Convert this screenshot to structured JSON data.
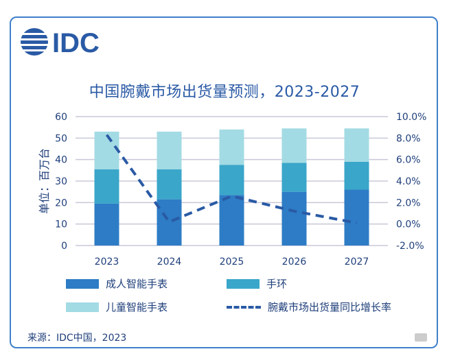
{
  "logo": {
    "text": "IDC",
    "icon": "idc-globe-logo"
  },
  "colors": {
    "adult": "#2d7cc5",
    "band": "#3aa6c9",
    "kids": "#a3dbe4",
    "yoy": "#2a5aa5",
    "axis_text": "#1e3e7a",
    "border": "#3f7fc9"
  },
  "chart_data": {
    "type": "bar",
    "title": "中国腕戴市场出货量预测，2023-2027",
    "ylabel": "单位：百万台",
    "categories": [
      "2023",
      "2024",
      "2025",
      "2026",
      "2027"
    ],
    "ylim": [
      0,
      60
    ],
    "yticks": [
      "0",
      "10",
      "20",
      "30",
      "40",
      "50",
      "60"
    ],
    "y2lim": [
      -2.0,
      10.0
    ],
    "y2ticks": [
      "-2.0%",
      "0.0%",
      "2.0%",
      "4.0%",
      "6.0%",
      "8.0%",
      "10.0%"
    ],
    "grid": true,
    "stacked": true,
    "series": [
      {
        "name": "成人智能手表",
        "type": "bar",
        "values": [
          19.5,
          21.5,
          23.5,
          25,
          26
        ]
      },
      {
        "name": "手环",
        "type": "bar",
        "values": [
          16,
          14,
          14,
          13.5,
          13
        ]
      },
      {
        "name": "儿童智能手表",
        "type": "bar",
        "values": [
          17.5,
          17.5,
          16.5,
          16,
          15.5
        ]
      },
      {
        "name": "腕戴市场出货量同比增长率",
        "type": "line",
        "axis": "right",
        "values": [
          8.3,
          0.2,
          2.6,
          1.2,
          0.1
        ]
      }
    ]
  },
  "legend": {
    "adult": "成人智能手表",
    "band": "手环",
    "kids": "儿童智能手表",
    "yoy": "腕戴市场出货量同比增长率"
  },
  "source": "来源：IDC中国，2023"
}
